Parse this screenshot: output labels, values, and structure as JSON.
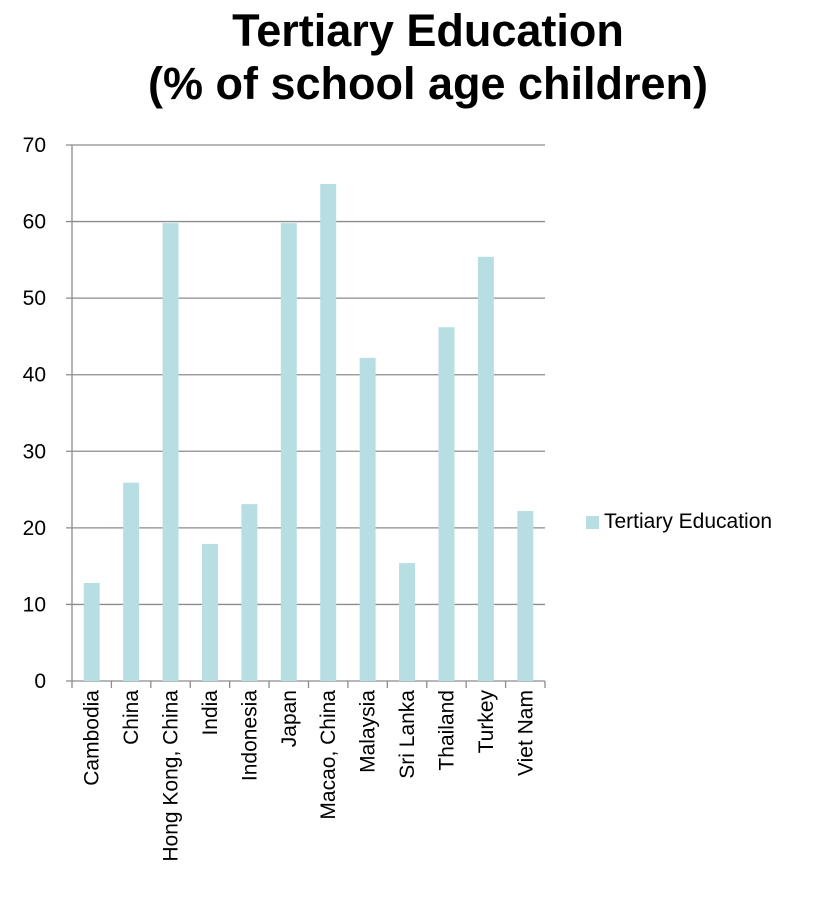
{
  "chart_data": {
    "type": "bar",
    "title_lines": [
      "Tertiary Education",
      "(% of school age children)"
    ],
    "categories": [
      "Cambodia",
      "China",
      "Hong Kong, China",
      "India",
      "Indonesia",
      "Japan",
      "Macao, China",
      "Malaysia",
      "Sri Lanka",
      "Thailand",
      "Turkey",
      "Viet Nam"
    ],
    "series": [
      {
        "name": "Tertiary Education",
        "values": [
          12.8,
          25.9,
          59.8,
          17.9,
          23.1,
          59.8,
          64.9,
          42.2,
          15.4,
          46.2,
          55.4,
          22.2
        ],
        "color": "#b7dfe3"
      }
    ],
    "ylim": [
      0,
      70
    ],
    "yticks": [
      "0",
      "10",
      "20",
      "30",
      "40",
      "50",
      "60",
      "70"
    ],
    "grid": true,
    "legend": "right"
  }
}
